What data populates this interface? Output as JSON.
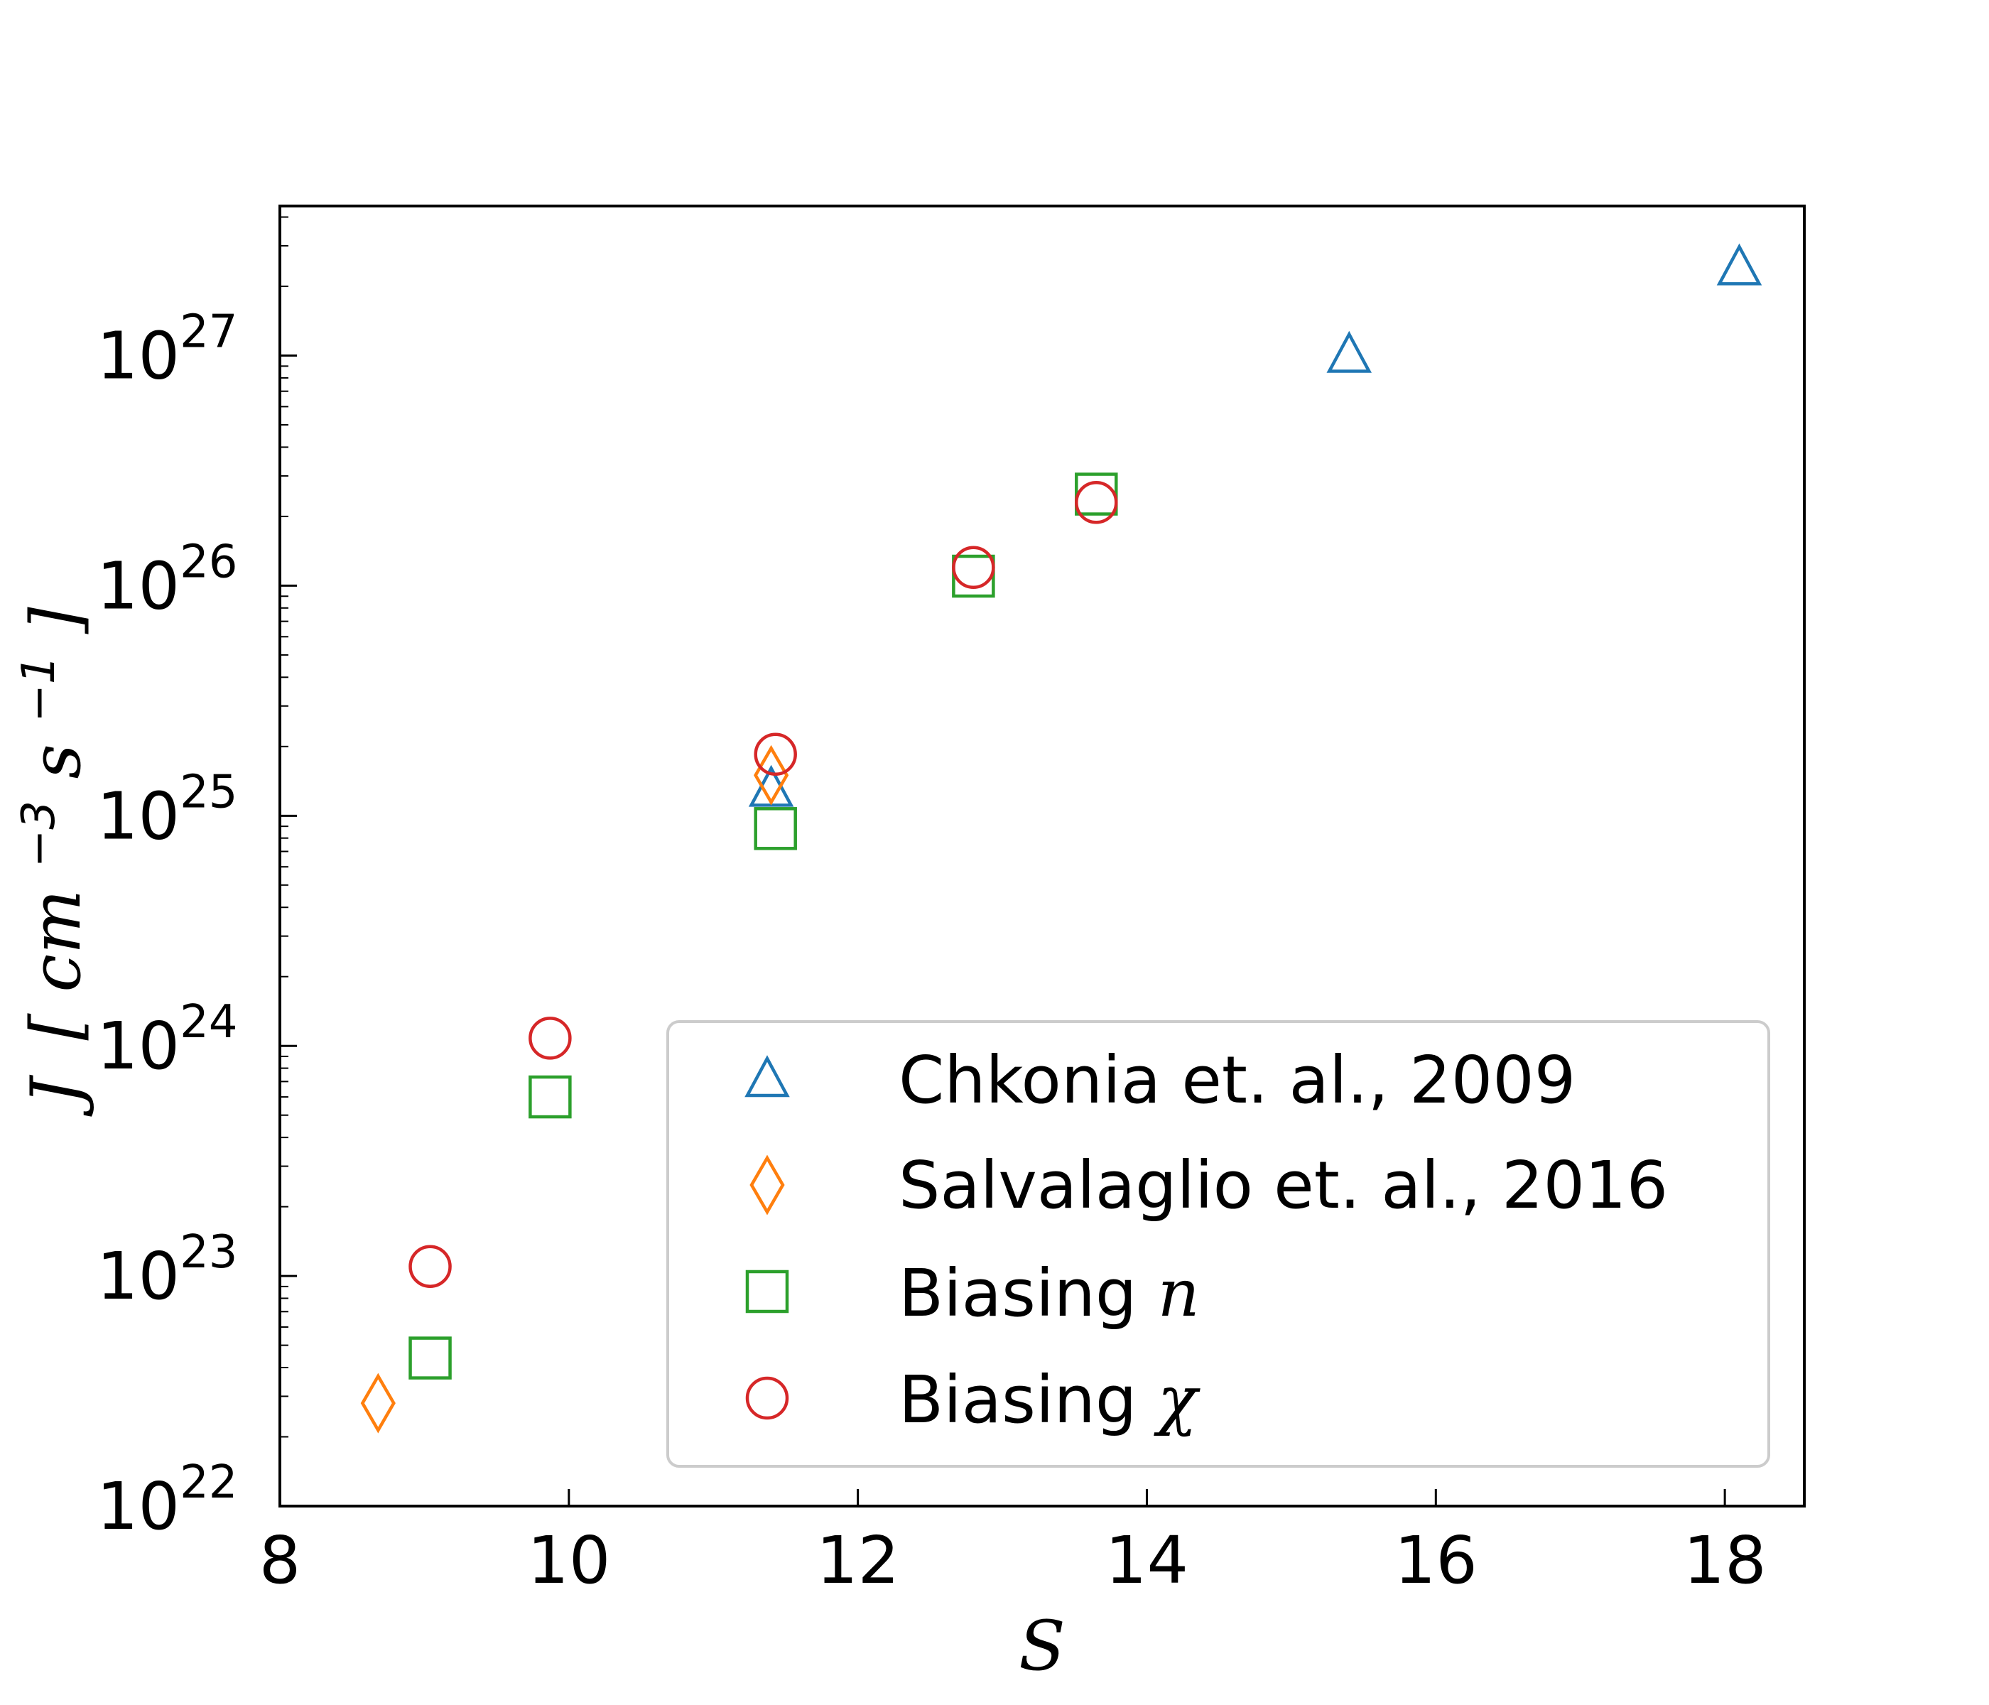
{
  "chart_data": {
    "type": "scatter",
    "title": "",
    "xlabel": "S",
    "ylabel_parts": {
      "symbol": "J",
      "open": "[",
      "unit1": "cm",
      "exp1": "−3",
      "unit2": "s",
      "exp2": "−1",
      "close": "]"
    },
    "xlim": [
      8,
      18.55
    ],
    "ylim_log10": [
      22,
      27.65
    ],
    "yscale": "log",
    "xticks": [
      8,
      10,
      12,
      14,
      16,
      18
    ],
    "xtick_labels": [
      "8",
      "10",
      "12",
      "14",
      "16",
      "18"
    ],
    "yticks_exponents": [
      22,
      23,
      24,
      25,
      26,
      27
    ],
    "ytick_base": "10",
    "ytick_sups": [
      "22",
      "23",
      "24",
      "25",
      "26",
      "27"
    ],
    "grid": false,
    "legend_position": "lower-right",
    "series": [
      {
        "name": "Chkonia et. al., 2009",
        "marker": "triangle",
        "color": "#1f77b4",
        "points": [
          {
            "x": 11.4,
            "y": 1.3e+25
          },
          {
            "x": 15.4,
            "y": 1e+27
          },
          {
            "x": 18.1,
            "y": 2.4e+27
          }
        ]
      },
      {
        "name": "Salvalaglio et. al., 2016",
        "marker": "diamond",
        "color": "#ff7f0e",
        "points": [
          {
            "x": 8.68,
            "y": 2.8e+22
          },
          {
            "x": 11.4,
            "y": 1.5e+25
          }
        ]
      },
      {
        "name": "Biasing ",
        "name_math": "n",
        "marker": "square",
        "color": "#2ca02c",
        "points": [
          {
            "x": 9.04,
            "y": 4.4e+22
          },
          {
            "x": 9.87,
            "y": 6e+23
          },
          {
            "x": 11.43,
            "y": 8.8e+24
          },
          {
            "x": 12.8,
            "y": 1.1e+26
          },
          {
            "x": 13.65,
            "y": 2.5e+26
          }
        ]
      },
      {
        "name": "Biasing ",
        "name_math": "χ",
        "marker": "circle",
        "color": "#d62728",
        "points": [
          {
            "x": 9.04,
            "y": 1.1e+23
          },
          {
            "x": 9.87,
            "y": 1.08e+24
          },
          {
            "x": 11.43,
            "y": 1.85e+25
          },
          {
            "x": 12.8,
            "y": 1.2e+26
          },
          {
            "x": 13.65,
            "y": 2.3e+26
          }
        ]
      }
    ]
  }
}
